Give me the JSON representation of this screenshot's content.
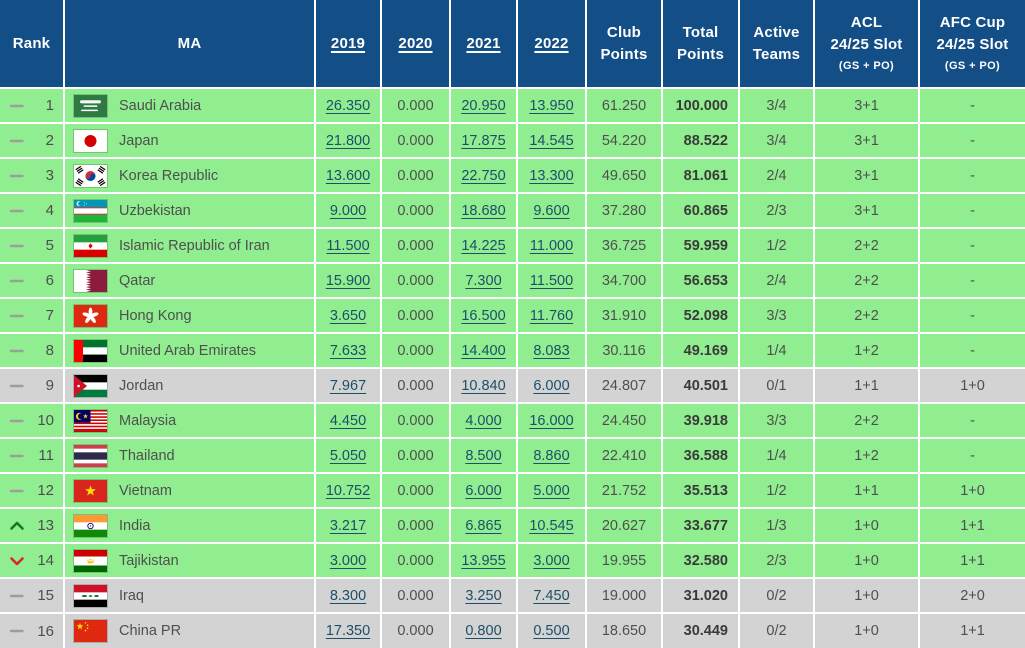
{
  "colors": {
    "header_bg": "#134e87",
    "row_green": "#90ee90",
    "row_gray": "#d3d3d3",
    "link": "#1d4f68",
    "rank_up": "#0f7c21",
    "rank_down": "#e02129",
    "rank_same": "#98a09e"
  },
  "table": {
    "headers": {
      "rank": "Rank",
      "ma": "MA",
      "y2019": "2019",
      "y2020": "2020",
      "y2021": "2021",
      "y2022": "2022",
      "club_points": "Club Points",
      "total_points": "Total Points",
      "active_teams": "Active Teams",
      "acl_line1": "ACL",
      "acl_line2": "24/25 Slot",
      "acl_sub": "(GS + PO)",
      "afc_cup_line1": "AFC Cup",
      "afc_cup_line2": "24/25 Slot",
      "afc_cup_sub": "(GS + PO)"
    },
    "rows": [
      {
        "movement": "same",
        "rank": "1",
        "flag": "sa",
        "country": "Saudi Arabia",
        "y2019": "26.350",
        "y2020": "0.000",
        "y2021": "20.950",
        "y2022": "13.950",
        "club_points": "61.250",
        "total_points": "100.000",
        "active_teams": "3/4",
        "acl_slot": "3+1",
        "afc_cup_slot": "-",
        "tone": "green"
      },
      {
        "movement": "same",
        "rank": "2",
        "flag": "jp",
        "country": "Japan",
        "y2019": "21.800",
        "y2020": "0.000",
        "y2021": "17.875",
        "y2022": "14.545",
        "club_points": "54.220",
        "total_points": "88.522",
        "active_teams": "3/4",
        "acl_slot": "3+1",
        "afc_cup_slot": "-",
        "tone": "green"
      },
      {
        "movement": "same",
        "rank": "3",
        "flag": "kr",
        "country": "Korea Republic",
        "y2019": "13.600",
        "y2020": "0.000",
        "y2021": "22.750",
        "y2022": "13.300",
        "club_points": "49.650",
        "total_points": "81.061",
        "active_teams": "2/4",
        "acl_slot": "3+1",
        "afc_cup_slot": "-",
        "tone": "green"
      },
      {
        "movement": "same",
        "rank": "4",
        "flag": "uz",
        "country": "Uzbekistan",
        "y2019": "9.000",
        "y2020": "0.000",
        "y2021": "18.680",
        "y2022": "9.600",
        "club_points": "37.280",
        "total_points": "60.865",
        "active_teams": "2/3",
        "acl_slot": "3+1",
        "afc_cup_slot": "-",
        "tone": "green"
      },
      {
        "movement": "same",
        "rank": "5",
        "flag": "ir",
        "country": "Islamic Republic of Iran",
        "y2019": "11.500",
        "y2020": "0.000",
        "y2021": "14.225",
        "y2022": "11.000",
        "club_points": "36.725",
        "total_points": "59.959",
        "active_teams": "1/2",
        "acl_slot": "2+2",
        "afc_cup_slot": "-",
        "tone": "green"
      },
      {
        "movement": "same",
        "rank": "6",
        "flag": "qa",
        "country": "Qatar",
        "y2019": "15.900",
        "y2020": "0.000",
        "y2021": "7.300",
        "y2022": "11.500",
        "club_points": "34.700",
        "total_points": "56.653",
        "active_teams": "2/4",
        "acl_slot": "2+2",
        "afc_cup_slot": "-",
        "tone": "green"
      },
      {
        "movement": "same",
        "rank": "7",
        "flag": "hk",
        "country": "Hong Kong",
        "y2019": "3.650",
        "y2020": "0.000",
        "y2021": "16.500",
        "y2022": "11.760",
        "club_points": "31.910",
        "total_points": "52.098",
        "active_teams": "3/3",
        "acl_slot": "2+2",
        "afc_cup_slot": "-",
        "tone": "green"
      },
      {
        "movement": "same",
        "rank": "8",
        "flag": "ae",
        "country": "United Arab Emirates",
        "y2019": "7.633",
        "y2020": "0.000",
        "y2021": "14.400",
        "y2022": "8.083",
        "club_points": "30.116",
        "total_points": "49.169",
        "active_teams": "1/4",
        "acl_slot": "1+2",
        "afc_cup_slot": "-",
        "tone": "green"
      },
      {
        "movement": "same",
        "rank": "9",
        "flag": "jo",
        "country": "Jordan",
        "y2019": "7.967",
        "y2020": "0.000",
        "y2021": "10.840",
        "y2022": "6.000",
        "club_points": "24.807",
        "total_points": "40.501",
        "active_teams": "0/1",
        "acl_slot": "1+1",
        "afc_cup_slot": "1+0",
        "tone": "gray"
      },
      {
        "movement": "same",
        "rank": "10",
        "flag": "my",
        "country": "Malaysia",
        "y2019": "4.450",
        "y2020": "0.000",
        "y2021": "4.000",
        "y2022": "16.000",
        "club_points": "24.450",
        "total_points": "39.918",
        "active_teams": "3/3",
        "acl_slot": "2+2",
        "afc_cup_slot": "-",
        "tone": "green"
      },
      {
        "movement": "same",
        "rank": "11",
        "flag": "th",
        "country": "Thailand",
        "y2019": "5.050",
        "y2020": "0.000",
        "y2021": "8.500",
        "y2022": "8.860",
        "club_points": "22.410",
        "total_points": "36.588",
        "active_teams": "1/4",
        "acl_slot": "1+2",
        "afc_cup_slot": "-",
        "tone": "green"
      },
      {
        "movement": "same",
        "rank": "12",
        "flag": "vn",
        "country": "Vietnam",
        "y2019": "10.752",
        "y2020": "0.000",
        "y2021": "6.000",
        "y2022": "5.000",
        "club_points": "21.752",
        "total_points": "35.513",
        "active_teams": "1/2",
        "acl_slot": "1+1",
        "afc_cup_slot": "1+0",
        "tone": "green"
      },
      {
        "movement": "up",
        "rank": "13",
        "flag": "in",
        "country": "India",
        "y2019": "3.217",
        "y2020": "0.000",
        "y2021": "6.865",
        "y2022": "10.545",
        "club_points": "20.627",
        "total_points": "33.677",
        "active_teams": "1/3",
        "acl_slot": "1+0",
        "afc_cup_slot": "1+1",
        "tone": "green"
      },
      {
        "movement": "down",
        "rank": "14",
        "flag": "tj",
        "country": "Tajikistan",
        "y2019": "3.000",
        "y2020": "0.000",
        "y2021": "13.955",
        "y2022": "3.000",
        "club_points": "19.955",
        "total_points": "32.580",
        "active_teams": "2/3",
        "acl_slot": "1+0",
        "afc_cup_slot": "1+1",
        "tone": "green"
      },
      {
        "movement": "same",
        "rank": "15",
        "flag": "iq",
        "country": "Iraq",
        "y2019": "8.300",
        "y2020": "0.000",
        "y2021": "3.250",
        "y2022": "7.450",
        "club_points": "19.000",
        "total_points": "31.020",
        "active_teams": "0/2",
        "acl_slot": "1+0",
        "afc_cup_slot": "2+0",
        "tone": "gray"
      },
      {
        "movement": "same",
        "rank": "16",
        "flag": "cn",
        "country": "China PR",
        "y2019": "17.350",
        "y2020": "0.000",
        "y2021": "0.800",
        "y2022": "0.500",
        "club_points": "18.650",
        "total_points": "30.449",
        "active_teams": "0/2",
        "acl_slot": "1+0",
        "afc_cup_slot": "1+1",
        "tone": "gray"
      }
    ]
  }
}
